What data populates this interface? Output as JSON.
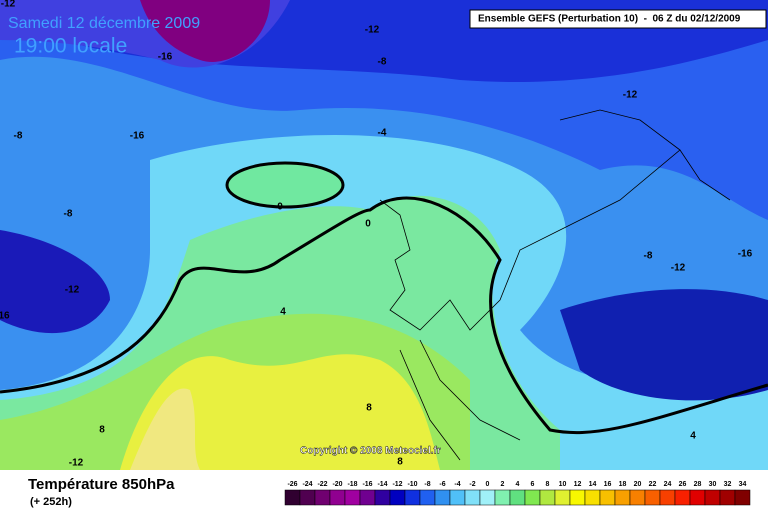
{
  "header": {
    "date": "Samedi 12 décembre 2009",
    "time": "19:00 locale",
    "model": "Ensemble GEFS (Perturbation 10)  -  06 Z du 02/12/2009"
  },
  "map": {
    "contour_labels": [
      "-12",
      "-12",
      "-16",
      "-8",
      "-16",
      "-8",
      "-4",
      "-12",
      "-8",
      "0",
      "0",
      "-8",
      "-12",
      "-16",
      "-12",
      "16",
      "4",
      "8",
      "8",
      "4",
      "-12",
      "8"
    ]
  },
  "copyright": "Copyright © 2008 Meteociel.fr",
  "footer": {
    "title": "Température 850hPa",
    "lead": "(+ 252h)"
  },
  "legend": {
    "labels": [
      -26,
      -24,
      -22,
      -20,
      -18,
      -16,
      -14,
      -12,
      -10,
      -8,
      -6,
      -4,
      -2,
      0,
      2,
      4,
      6,
      8,
      10,
      12,
      14,
      16,
      18,
      20,
      22,
      24,
      26,
      28,
      30,
      32,
      34
    ],
    "colors": [
      "#300030",
      "#500050",
      "#700070",
      "#900090",
      "#a000a0",
      "#700090",
      "#3000a0",
      "#0000c0",
      "#1030e0",
      "#2060f0",
      "#3090f0",
      "#50c0f8",
      "#80e0f8",
      "#a0f0f8",
      "#80f0b0",
      "#60e080",
      "#80e850",
      "#b0e840",
      "#e0f030",
      "#f8f800",
      "#f8e000",
      "#f8c000",
      "#f8a000",
      "#f88000",
      "#f86000",
      "#f84000",
      "#f82000",
      "#e00000",
      "#c00000",
      "#a00000",
      "#800000"
    ]
  }
}
